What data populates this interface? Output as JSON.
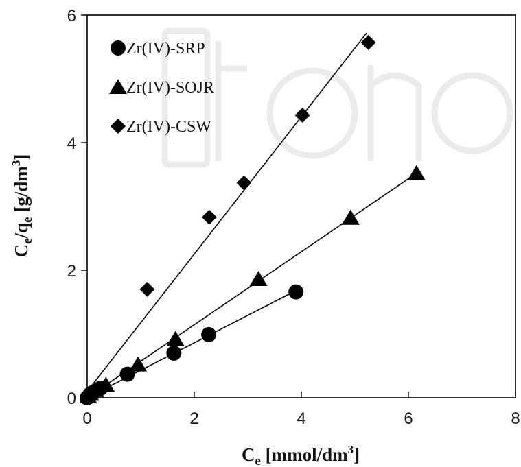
{
  "chart_data": {
    "type": "scatter",
    "xlabel": {
      "main": "C",
      "sub": "e",
      "rest": " [mmol/dm",
      "sup": "3",
      "close": "]"
    },
    "ylabel": {
      "c": "C",
      "c_sub": "e",
      "slash": "/q",
      "q_sub": "e",
      "rest": " [g/dm",
      "sup": "3",
      "close": "]"
    },
    "xlim": [
      0,
      8
    ],
    "ylim": [
      0,
      6
    ],
    "x_ticks": [
      0,
      2,
      4,
      6,
      8
    ],
    "y_ticks": [
      0,
      2,
      4,
      6
    ],
    "grid": false,
    "legend_position": "top-left",
    "series": [
      {
        "name": "Zr(IV)-SRP",
        "marker": "circle",
        "color": "#000000",
        "points": [
          {
            "x": 0.0,
            "y": 0.0
          },
          {
            "x": 0.05,
            "y": 0.05
          },
          {
            "x": 0.1,
            "y": 0.08
          },
          {
            "x": 0.25,
            "y": 0.15
          },
          {
            "x": 0.75,
            "y": 0.37
          },
          {
            "x": 1.62,
            "y": 0.7
          },
          {
            "x": 2.27,
            "y": 0.99
          },
          {
            "x": 3.9,
            "y": 1.66
          }
        ],
        "fit": {
          "x": [
            0.0,
            3.9
          ],
          "y": [
            0.0,
            1.68
          ]
        }
      },
      {
        "name": "Zr(IV)-SOJR",
        "marker": "triangle",
        "color": "#000000",
        "points": [
          {
            "x": 0.02,
            "y": 0.02
          },
          {
            "x": 0.06,
            "y": 0.06
          },
          {
            "x": 0.15,
            "y": 0.12
          },
          {
            "x": 0.35,
            "y": 0.2
          },
          {
            "x": 0.95,
            "y": 0.52
          },
          {
            "x": 1.65,
            "y": 0.92
          },
          {
            "x": 3.2,
            "y": 1.86
          },
          {
            "x": 4.92,
            "y": 2.82
          },
          {
            "x": 6.15,
            "y": 3.52
          }
        ],
        "fit": {
          "x": [
            0.0,
            6.15
          ],
          "y": [
            0.0,
            3.52
          ]
        }
      },
      {
        "name": "Zr(IV)-CSW",
        "marker": "diamond",
        "color": "#000000",
        "points": [
          {
            "x": 0.0,
            "y": 0.0
          },
          {
            "x": 0.05,
            "y": 0.06
          },
          {
            "x": 0.12,
            "y": 0.1
          },
          {
            "x": 1.12,
            "y": 1.7
          },
          {
            "x": 2.28,
            "y": 2.83
          },
          {
            "x": 2.93,
            "y": 3.37
          },
          {
            "x": 4.02,
            "y": 4.43
          },
          {
            "x": 5.25,
            "y": 5.57
          }
        ],
        "fit": {
          "x": [
            0.0,
            5.22
          ],
          "y": [
            0.1,
            5.72
          ]
        }
      }
    ]
  }
}
